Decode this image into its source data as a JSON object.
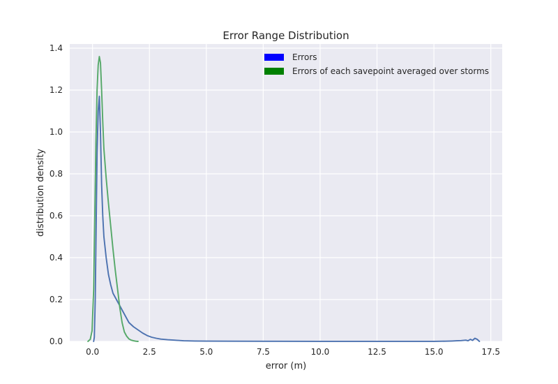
{
  "chart_data": {
    "type": "line",
    "title": "Error Range Distribution",
    "xlabel": "error (m)",
    "ylabel": "distribution density",
    "xlim": [
      -1.0,
      18.0
    ],
    "ylim": [
      0.0,
      1.42
    ],
    "xticks": [
      0.0,
      2.5,
      5.0,
      7.5,
      10.0,
      12.5,
      15.0,
      17.5
    ],
    "xtick_labels": [
      "0.0",
      "2.5",
      "5.0",
      "7.5",
      "10.0",
      "12.5",
      "15.0",
      "17.5"
    ],
    "yticks": [
      0.0,
      0.2,
      0.4,
      0.6,
      0.8,
      1.0,
      1.2,
      1.4
    ],
    "ytick_labels": [
      "0.0",
      "0.2",
      "0.4",
      "0.6",
      "0.8",
      "1.0",
      "1.2",
      "1.4"
    ],
    "grid": true,
    "legend_placement": "top-right",
    "series": [
      {
        "name": "Errors",
        "legend_color": "#0000ff",
        "line_color": "#4c72b0",
        "x": [
          0.05,
          0.08,
          0.12,
          0.16,
          0.2,
          0.25,
          0.3,
          0.35,
          0.4,
          0.45,
          0.5,
          0.6,
          0.7,
          0.8,
          0.9,
          1.0,
          1.2,
          1.4,
          1.6,
          1.8,
          2.0,
          2.2,
          2.4,
          2.6,
          2.8,
          3.0,
          3.3,
          3.6,
          4.0,
          4.5,
          5.0,
          6.0,
          8.0,
          10.0,
          12.0,
          14.0,
          15.0,
          15.5,
          15.8,
          16.0,
          16.2,
          16.4,
          16.5,
          16.6,
          16.7,
          16.8,
          16.9,
          17.0
        ],
        "y": [
          0.0,
          0.02,
          0.2,
          0.55,
          0.9,
          1.1,
          1.17,
          1.0,
          0.75,
          0.6,
          0.5,
          0.4,
          0.32,
          0.27,
          0.23,
          0.21,
          0.17,
          0.13,
          0.09,
          0.07,
          0.055,
          0.04,
          0.028,
          0.02,
          0.015,
          0.011,
          0.008,
          0.006,
          0.003,
          0.002,
          0.0015,
          0.001,
          0.0005,
          0.0003,
          0.0002,
          0.0002,
          0.0003,
          0.001,
          0.002,
          0.003,
          0.004,
          0.006,
          0.003,
          0.01,
          0.005,
          0.015,
          0.01,
          0.0
        ],
        "values_note": ""
      },
      {
        "name": "Errors of each savepoint averaged over storms",
        "legend_color": "#008000",
        "line_color": "#55a868",
        "x": [
          -0.2,
          -0.1,
          -0.02,
          0.05,
          0.1,
          0.15,
          0.2,
          0.25,
          0.3,
          0.35,
          0.4,
          0.45,
          0.5,
          0.6,
          0.7,
          0.8,
          0.9,
          1.0,
          1.1,
          1.2,
          1.3,
          1.4,
          1.5,
          1.6,
          1.7,
          1.8,
          1.9,
          2.0
        ],
        "y": [
          0.0,
          0.01,
          0.05,
          0.25,
          0.6,
          0.95,
          1.2,
          1.32,
          1.36,
          1.33,
          1.2,
          1.05,
          0.92,
          0.78,
          0.66,
          0.55,
          0.44,
          0.34,
          0.25,
          0.16,
          0.09,
          0.045,
          0.025,
          0.012,
          0.006,
          0.003,
          0.001,
          0.0
        ]
      }
    ]
  }
}
